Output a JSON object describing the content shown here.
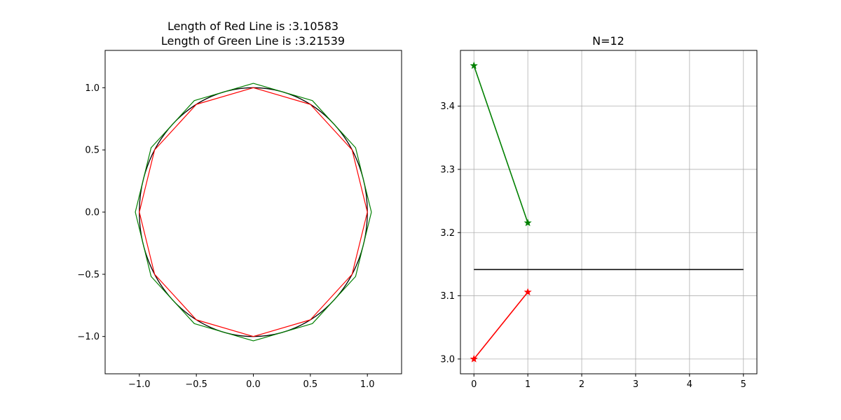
{
  "figure": {
    "background": "#ffffff"
  },
  "chart_data": [
    {
      "type": "line",
      "title_lines": [
        "Length of Red Line is    :3.10583",
        "Length of Green Line is  :3.21539"
      ],
      "xlabel": "",
      "ylabel": "",
      "xlim": [
        -1.3,
        1.3
      ],
      "ylim": [
        -1.3,
        1.3
      ],
      "xticks": [
        -1.0,
        -0.5,
        0.0,
        0.5,
        1.0
      ],
      "xtick_labels": [
        "−1.0",
        "−0.5",
        "0.0",
        "0.5",
        "1.0"
      ],
      "yticks": [
        -1.0,
        -0.5,
        0.0,
        0.5,
        1.0
      ],
      "ytick_labels": [
        "−1.0",
        "−0.5",
        "0.0",
        "0.5",
        "1.0"
      ],
      "grid": false,
      "series": [
        {
          "color": "#000000",
          "kind": "circle",
          "center": [
            0,
            0
          ],
          "radius": 1.0
        },
        {
          "color": "#ff0000",
          "kind": "inscribed-polygon",
          "sides": 12,
          "radius": 1.0,
          "x": [
            1.0,
            0.866,
            0.5,
            0.0,
            -0.5,
            -0.866,
            -1.0,
            -0.866,
            -0.5,
            0.0,
            0.5,
            0.866,
            1.0
          ],
          "y": [
            0.0,
            0.5,
            0.866,
            1.0,
            0.866,
            0.5,
            0.0,
            -0.5,
            -0.866,
            -1.0,
            -0.866,
            -0.5,
            0.0
          ]
        },
        {
          "color": "#008000",
          "kind": "circumscribed-polygon",
          "sides": 12,
          "radius": 1.0353,
          "x": [
            1.0353,
            0.8966,
            0.5176,
            0.0,
            -0.5176,
            -0.8966,
            -1.0353,
            -0.8966,
            -0.5176,
            0.0,
            0.5176,
            0.8966,
            1.0353
          ],
          "y": [
            0.0,
            0.5176,
            0.8966,
            1.0353,
            0.8966,
            0.5176,
            0.0,
            -0.5176,
            -0.8966,
            -1.0353,
            -0.8966,
            -0.5176,
            0.0
          ]
        }
      ]
    },
    {
      "type": "line",
      "title": "N=12",
      "xlabel": "",
      "ylabel": "",
      "xlim": [
        -0.25,
        5.25
      ],
      "ylim": [
        2.9766,
        3.4882
      ],
      "xticks": [
        0,
        1,
        2,
        3,
        4,
        5
      ],
      "xtick_labels": [
        "0",
        "1",
        "2",
        "3",
        "4",
        "5"
      ],
      "yticks": [
        3.0,
        3.1,
        3.2,
        3.3,
        3.4
      ],
      "ytick_labels": [
        "3.0",
        "3.1",
        "3.2",
        "3.3",
        "3.4"
      ],
      "grid": true,
      "grid_color": "#b0b0b0",
      "series": [
        {
          "color": "#008000",
          "marker": "star",
          "x": [
            0,
            1
          ],
          "y": [
            3.4641,
            3.21539
          ]
        },
        {
          "color": "#ff0000",
          "marker": "star",
          "x": [
            0,
            1
          ],
          "y": [
            3.0,
            3.10583
          ]
        },
        {
          "color": "#000000",
          "marker": "none",
          "x": [
            0,
            5
          ],
          "y": [
            3.14159,
            3.14159
          ]
        }
      ]
    }
  ]
}
